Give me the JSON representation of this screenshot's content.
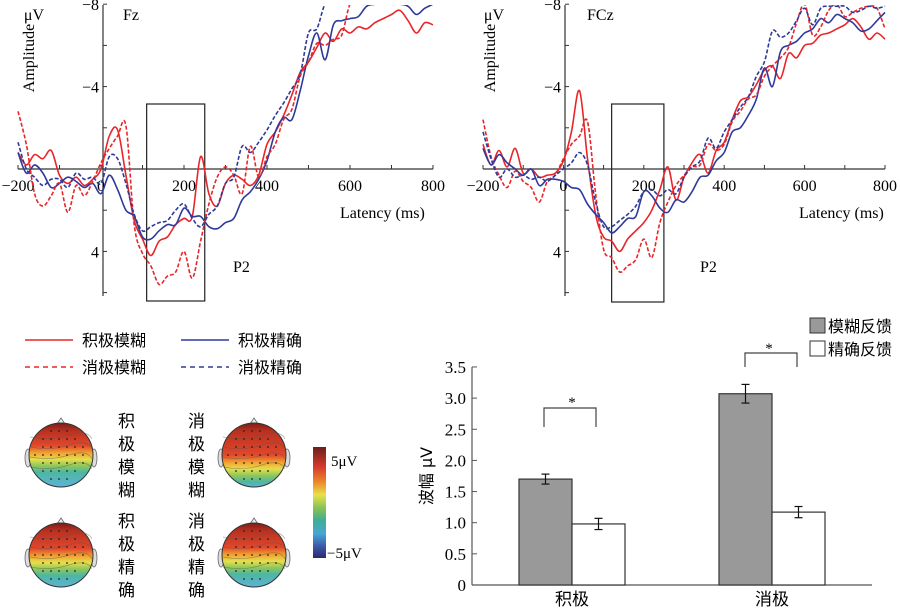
{
  "figure_panels": {
    "legend": {
      "items": [
        {
          "label": "积极模糊",
          "color": "#e8262a",
          "style": "solid"
        },
        {
          "label": "积极精确",
          "color": "#2e3a9a",
          "style": "solid"
        },
        {
          "label": "消极模糊",
          "color": "#e8262a",
          "style": "dashed"
        },
        {
          "label": "消极精确",
          "color": "#2e3a9a",
          "style": "dashed"
        }
      ]
    },
    "topomaps": {
      "items": [
        {
          "label": "积极模糊",
          "chars": [
            "积",
            "极",
            "模",
            "糊"
          ]
        },
        {
          "label": "消极模糊",
          "chars": [
            "消",
            "极",
            "模",
            "糊"
          ]
        },
        {
          "label": "积极精确",
          "chars": [
            "积",
            "极",
            "精",
            "确"
          ]
        },
        {
          "label": "消极精确",
          "chars": [
            "消",
            "极",
            "精",
            "确"
          ]
        }
      ],
      "colorbar": {
        "max_label": "5μV",
        "min_label": "−5μV",
        "range": [
          -5,
          5
        ],
        "unit": "μV"
      }
    }
  },
  "chart_data": [
    {
      "type": "line",
      "title": "Fz",
      "xlabel": "Latency (ms)",
      "ylabel": "Amplitude",
      "yunit": "μV",
      "xlim": [
        -200,
        800
      ],
      "ylim": [
        6,
        -8
      ],
      "y_inverted": true,
      "xticks": [
        -200,
        0,
        200,
        400,
        600,
        800
      ],
      "xtick_labels": [
        "−200",
        "0",
        "200",
        "400",
        "600",
        "800"
      ],
      "yticks_labeled": [
        -8,
        -4,
        4
      ],
      "ytick_labels": [
        "−8",
        "−4",
        "4"
      ],
      "annotation": {
        "label": "P2",
        "window_ms": [
          110,
          250
        ]
      },
      "series": [
        {
          "name": "积极模糊",
          "color": "#e8262a",
          "dash": false,
          "x": [
            -200,
            -180,
            -160,
            -140,
            -120,
            -100,
            -80,
            -60,
            -40,
            -20,
            0,
            20,
            40,
            60,
            80,
            100,
            120,
            140,
            160,
            180,
            200,
            220,
            240,
            260,
            280,
            300,
            320,
            340,
            360,
            380,
            400,
            420,
            440,
            460,
            480,
            500,
            520,
            540,
            560,
            580,
            600,
            620,
            640,
            660,
            680,
            700,
            720,
            740,
            760,
            780,
            800
          ],
          "y": [
            -0.8,
            -0.2,
            -0.7,
            -0.5,
            -0.9,
            0.3,
            0.7,
            0.4,
            0.8,
            0.5,
            0.0,
            -1.6,
            -1.9,
            0.3,
            2.5,
            3.4,
            4.2,
            3.5,
            3.3,
            2.7,
            2.4,
            2.3,
            -0.6,
            1.2,
            1.8,
            0.7,
            0.3,
            0.5,
            0.8,
            0.3,
            -1.2,
            -1.8,
            -2.6,
            -3.6,
            -4.7,
            -5.2,
            -5.9,
            -6.6,
            -6.2,
            -6.8,
            -6.6,
            -6.9,
            -6.8,
            -7.1,
            -7.3,
            -7.5,
            -7.7,
            -7.2,
            -6.6,
            -7.1,
            -7.0
          ]
        },
        {
          "name": "积极精确",
          "color": "#2e3a9a",
          "dash": false,
          "x": [
            -200,
            -180,
            -160,
            -140,
            -120,
            -100,
            -80,
            -60,
            -40,
            -20,
            0,
            20,
            40,
            60,
            80,
            100,
            120,
            140,
            160,
            180,
            200,
            220,
            240,
            260,
            280,
            300,
            320,
            340,
            360,
            380,
            400,
            420,
            440,
            460,
            480,
            500,
            520,
            540,
            560,
            580,
            600,
            620,
            640,
            660,
            680,
            700,
            720,
            740,
            760,
            780,
            800
          ],
          "y": [
            -0.8,
            0.2,
            -0.2,
            0.2,
            0.9,
            0.7,
            0.4,
            0.6,
            0.9,
            0.7,
            1.2,
            0.3,
            1.0,
            2.0,
            2.3,
            3.3,
            3.4,
            3.0,
            2.7,
            2.7,
            1.9,
            2.3,
            2.3,
            2.8,
            2.9,
            2.6,
            2.4,
            1.5,
            1.1,
            0.5,
            -0.4,
            -1.8,
            -2.5,
            -2.4,
            -3.8,
            -5.5,
            -6.6,
            -5.3,
            -7.0,
            -7.2,
            -7.3,
            -7.4,
            -7.9,
            -8.0,
            -8.1,
            -8.0,
            -8.0,
            -7.9,
            -7.5,
            -7.8,
            -8.0
          ]
        },
        {
          "name": "消极模糊",
          "color": "#e8262a",
          "dash": true,
          "x": [
            -200,
            -180,
            -160,
            -140,
            -120,
            -100,
            -80,
            -60,
            -40,
            -20,
            0,
            20,
            40,
            60,
            80,
            100,
            120,
            140,
            160,
            180,
            200,
            220,
            240,
            260,
            280,
            300,
            320,
            340,
            360,
            380,
            400,
            420,
            440,
            460,
            480,
            500,
            520,
            540,
            560,
            580,
            600,
            620,
            640,
            660,
            680,
            700,
            720,
            740,
            760,
            780,
            800
          ],
          "y": [
            -2.8,
            -1.2,
            1.2,
            1.8,
            1.3,
            0.7,
            2.1,
            0.8,
            1.3,
            0.6,
            -0.3,
            -1.0,
            -1.6,
            -2.1,
            2.7,
            4.1,
            4.7,
            5.6,
            5.2,
            5.0,
            4.0,
            5.3,
            3.5,
            1.7,
            0.4,
            -0.1,
            0.3,
            1.2,
            -1.1,
            0.4,
            -0.6,
            -1.2,
            -2.4,
            -2.9,
            -4.5,
            -5.2,
            -6.1,
            -6.0,
            -6.3,
            -6.5,
            -8.0,
            -8.2,
            -8.0,
            -8.1,
            -8.1,
            -8.0,
            -8.1,
            -8.0,
            -8.1,
            -8.2,
            -8.0
          ]
        },
        {
          "name": "消极精确",
          "color": "#2e3a9a",
          "dash": true,
          "x": [
            -200,
            -180,
            -160,
            -140,
            -120,
            -100,
            -80,
            -60,
            -40,
            -20,
            0,
            20,
            40,
            60,
            80,
            100,
            120,
            140,
            160,
            180,
            200,
            220,
            240,
            260,
            280,
            300,
            320,
            340,
            360,
            380,
            400,
            420,
            440,
            460,
            480,
            500,
            520,
            540,
            560,
            580,
            600,
            620,
            640,
            660,
            680,
            700,
            720,
            740,
            760,
            780,
            800
          ],
          "y": [
            -1.3,
            0.0,
            0.4,
            0.8,
            0.5,
            0.5,
            0.9,
            0.2,
            0.5,
            0.4,
            0.7,
            -0.6,
            -0.5,
            0.7,
            2.2,
            3.0,
            2.8,
            2.6,
            2.5,
            2.0,
            1.7,
            2.4,
            2.8,
            2.2,
            1.8,
            0.7,
            0.4,
            -1.1,
            -0.8,
            -1.3,
            -1.9,
            -2.6,
            -3.2,
            -3.9,
            -4.6,
            -6.6,
            -6.8,
            -8.0,
            -8.0,
            -8.0,
            -8.0,
            -8.0,
            -8.0,
            -8.0,
            -8.0,
            -8.0,
            -8.0,
            -8.0,
            -8.0,
            -8.0,
            -8.0
          ]
        }
      ]
    },
    {
      "type": "line",
      "title": "FCz",
      "xlabel": "Latency (ms)",
      "ylabel": "Amplitude",
      "yunit": "μV",
      "xlim": [
        -200,
        800
      ],
      "ylim": [
        6,
        -8
      ],
      "y_inverted": true,
      "xticks": [
        -200,
        0,
        200,
        400,
        600,
        800
      ],
      "xtick_labels": [
        "−200",
        "0",
        "200",
        "400",
        "600",
        "800"
      ],
      "yticks_labeled": [
        -8,
        -4,
        4
      ],
      "ytick_labels": [
        "−8",
        "−4",
        "4"
      ],
      "annotation": {
        "label": "P2",
        "window_ms": [
          120,
          250
        ]
      },
      "series": [
        {
          "name": "积极模糊",
          "color": "#e8262a",
          "dash": false,
          "x": [
            -200,
            -180,
            -160,
            -140,
            -120,
            -100,
            -80,
            -60,
            -40,
            -20,
            0,
            20,
            40,
            60,
            80,
            100,
            120,
            140,
            160,
            180,
            200,
            220,
            240,
            260,
            280,
            300,
            320,
            340,
            360,
            380,
            400,
            420,
            440,
            460,
            480,
            500,
            520,
            540,
            560,
            580,
            600,
            620,
            640,
            660,
            680,
            700,
            720,
            740,
            760,
            780,
            800
          ],
          "y": [
            -1.2,
            -0.2,
            -0.9,
            -0.1,
            -1.0,
            0.2,
            0.0,
            0.4,
            0.3,
            0.2,
            -0.4,
            -1.8,
            -3.8,
            -0.5,
            2.2,
            3.3,
            3.5,
            4.0,
            3.4,
            3.0,
            2.6,
            2.0,
            1.0,
            -0.1,
            1.5,
            0.4,
            -0.3,
            -0.7,
            0.2,
            -0.9,
            -1.3,
            -2.4,
            -3.3,
            -3.5,
            -4.1,
            -4.8,
            -5.0,
            -4.4,
            -5.6,
            -5.4,
            -6.0,
            -6.1,
            -6.5,
            -6.6,
            -6.8,
            -7.0,
            -7.3,
            -6.9,
            -6.3,
            -6.6,
            -6.3
          ]
        },
        {
          "name": "积极精确",
          "color": "#2e3a9a",
          "dash": false,
          "x": [
            -200,
            -180,
            -160,
            -140,
            -120,
            -100,
            -80,
            -60,
            -40,
            -20,
            0,
            20,
            40,
            60,
            80,
            100,
            120,
            140,
            160,
            180,
            200,
            220,
            240,
            260,
            280,
            300,
            320,
            340,
            360,
            380,
            400,
            420,
            440,
            460,
            480,
            500,
            520,
            540,
            560,
            580,
            600,
            620,
            640,
            660,
            680,
            700,
            720,
            740,
            760,
            780,
            800
          ],
          "y": [
            -1.0,
            -0.2,
            -0.7,
            -0.3,
            0.0,
            0.3,
            0.0,
            0.8,
            0.5,
            0.5,
            0.6,
            0.9,
            1.0,
            1.7,
            2.2,
            2.6,
            3.1,
            2.8,
            2.4,
            2.3,
            1.1,
            1.3,
            1.9,
            2.1,
            1.5,
            1.6,
            1.1,
            0.4,
            0.3,
            -0.4,
            -0.8,
            -1.8,
            -2.0,
            -2.6,
            -3.4,
            -4.9,
            -4.0,
            -5.7,
            -6.0,
            -6.2,
            -6.6,
            -6.8,
            -7.3,
            -7.1,
            -7.5,
            -7.3,
            -7.1,
            -6.7,
            -6.8,
            -7.2,
            -7.6
          ]
        },
        {
          "name": "消极模糊",
          "color": "#e8262a",
          "dash": true,
          "x": [
            -200,
            -180,
            -160,
            -140,
            -120,
            -100,
            -80,
            -60,
            -40,
            -20,
            0,
            20,
            40,
            60,
            80,
            100,
            120,
            140,
            160,
            180,
            200,
            220,
            240,
            260,
            280,
            300,
            320,
            340,
            360,
            380,
            400,
            420,
            440,
            460,
            480,
            500,
            520,
            540,
            560,
            580,
            600,
            620,
            640,
            660,
            680,
            700,
            720,
            740,
            760,
            780,
            800
          ],
          "y": [
            -2.4,
            -0.6,
            0.3,
            0.9,
            0.1,
            0.6,
            0.9,
            1.6,
            0.6,
            0.3,
            -0.5,
            -1.2,
            -1.6,
            -2.3,
            1.2,
            3.9,
            4.3,
            5.0,
            4.7,
            4.4,
            3.4,
            4.3,
            2.6,
            1.6,
            0.8,
            0.3,
            -0.1,
            -0.2,
            -1.2,
            -0.9,
            -1.2,
            -2.3,
            -2.8,
            -3.4,
            -3.6,
            -4.5,
            -5.0,
            -5.4,
            -5.9,
            -7.1,
            -8.0,
            -6.5,
            -6.9,
            -7.7,
            -8.0,
            -7.4,
            -7.6,
            -7.8,
            -7.9,
            -7.8,
            -6.8
          ]
        },
        {
          "name": "消极精确",
          "color": "#2e3a9a",
          "dash": true,
          "x": [
            -200,
            -180,
            -160,
            -140,
            -120,
            -100,
            -80,
            -60,
            -40,
            -20,
            0,
            20,
            40,
            60,
            80,
            100,
            120,
            140,
            160,
            180,
            200,
            220,
            240,
            260,
            280,
            300,
            320,
            340,
            360,
            380,
            400,
            420,
            440,
            460,
            480,
            500,
            520,
            540,
            560,
            580,
            600,
            620,
            640,
            660,
            680,
            700,
            720,
            740,
            760,
            780,
            800
          ],
          "y": [
            -1.8,
            -0.5,
            0.4,
            0.0,
            0.4,
            0.3,
            0.5,
            0.4,
            0.6,
            0.3,
            0.0,
            -0.3,
            -0.8,
            -0.2,
            1.6,
            2.8,
            2.8,
            2.5,
            2.2,
            1.8,
            1.1,
            1.0,
            1.3,
            1.0,
            1.2,
            0.4,
            -0.1,
            -0.4,
            -1.5,
            -1.0,
            -1.8,
            -2.4,
            -3.0,
            -3.5,
            -4.5,
            -5.2,
            -6.7,
            -6.4,
            -6.6,
            -7.2,
            -7.8,
            -7.0,
            -7.8,
            -7.9,
            -7.9,
            -7.9,
            -7.6,
            -7.7,
            -7.9,
            -7.8,
            -7.9
          ]
        }
      ]
    },
    {
      "type": "bar",
      "title": "",
      "xlabel": "",
      "ylabel": "波幅 μV",
      "categories": [
        "积极",
        "消极"
      ],
      "ylim": [
        0,
        3.5
      ],
      "yticks": [
        0,
        0.5,
        1.0,
        1.5,
        2.0,
        2.5,
        3.0,
        3.5
      ],
      "ytick_labels": [
        "0",
        "0.5",
        "1.0",
        "1.5",
        "2.0",
        "2.5",
        "3.0",
        "3.5"
      ],
      "legend_position": "top-right",
      "series": [
        {
          "name": "模糊反馈",
          "color": "#999999",
          "values": [
            1.7,
            3.07
          ],
          "errors": [
            0.08,
            0.15
          ]
        },
        {
          "name": "精确反馈",
          "color": "#ffffff",
          "values": [
            0.98,
            1.17
          ],
          "errors": [
            0.09,
            0.09
          ]
        }
      ],
      "significance": [
        {
          "category": "积极",
          "label": "*"
        },
        {
          "category": "消极",
          "label": "*"
        }
      ]
    }
  ]
}
